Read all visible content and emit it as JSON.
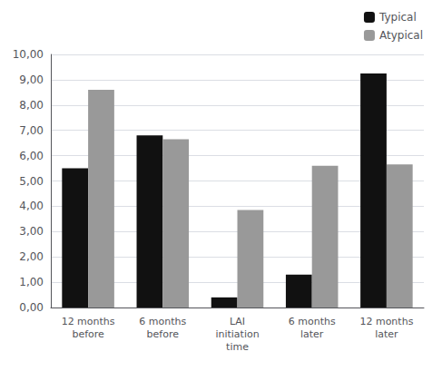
{
  "chart_data": {
    "type": "bar",
    "categories": [
      "12 months\nbefore",
      "6 months\nbefore",
      "LAI\ninitiation\ntime",
      "6 months\nlater",
      "12 months\nlater"
    ],
    "series": [
      {
        "name": "Typical",
        "color": "#111111",
        "values": [
          5.5,
          6.8,
          0.4,
          1.3,
          9.25
        ]
      },
      {
        "name": "Atypical",
        "color": "#999999",
        "values": [
          8.6,
          6.65,
          3.85,
          5.6,
          5.65
        ]
      }
    ],
    "ylim": [
      0,
      10
    ],
    "yticks": [
      {
        "value": 0.0,
        "label": "0,00"
      },
      {
        "value": 1.0,
        "label": "1,00"
      },
      {
        "value": 2.0,
        "label": "2,00"
      },
      {
        "value": 3.0,
        "label": "3,00"
      },
      {
        "value": 4.0,
        "label": "4,00"
      },
      {
        "value": 5.0,
        "label": "5,00"
      },
      {
        "value": 6.0,
        "label": "6,00"
      },
      {
        "value": 7.0,
        "label": "7,00"
      },
      {
        "value": 8.0,
        "label": "8,00"
      },
      {
        "value": 9.0,
        "label": "9,00"
      },
      {
        "value": 10.0,
        "label": "10,00"
      }
    ],
    "grid": true,
    "legend": "upper right"
  }
}
